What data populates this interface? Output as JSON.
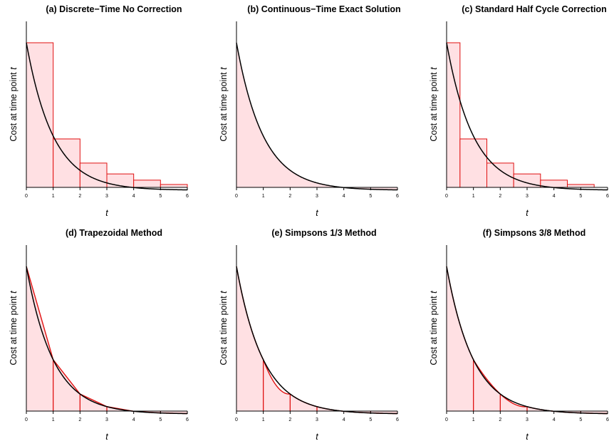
{
  "colors": {
    "curve": "#000000",
    "approx_line": "#e01010",
    "approx_fill": "#ffe0e3",
    "background": "#ffffff"
  },
  "chart_data": [
    {
      "id": "a",
      "type": "area",
      "method": "discrete",
      "title": "(a) Discrete−Time No Correction",
      "xlabel": "t",
      "ylabel_text": "Cost at time point ",
      "ylabel_var": "t",
      "xlim": [
        0,
        6
      ],
      "ylim": [
        0,
        1
      ],
      "x_ticks": [
        "0",
        "1",
        "2",
        "3",
        "4",
        "5",
        "6"
      ],
      "curve": {
        "y0": 1,
        "decay_rate": 1.0,
        "asymptote": -0.02
      },
      "steps": [
        {
          "x0": 0,
          "x1": 1,
          "y": 1.0
        },
        {
          "x0": 1,
          "x1": 2,
          "y": 0.335
        },
        {
          "x0": 2,
          "x1": 3,
          "y": 0.168
        },
        {
          "x0": 3,
          "x1": 4,
          "y": 0.093
        },
        {
          "x0": 4,
          "x1": 5,
          "y": 0.05
        },
        {
          "x0": 5,
          "x1": 6,
          "y": 0.02
        }
      ]
    },
    {
      "id": "b",
      "type": "area",
      "method": "exact",
      "title": "(b) Continuous−Time Exact Solution",
      "xlabel": "t",
      "ylabel_text": "Cost at time point ",
      "ylabel_var": "t",
      "xlim": [
        0,
        6
      ],
      "ylim": [
        0,
        1
      ],
      "x_ticks": [
        "0",
        "1",
        "2",
        "3",
        "4",
        "5",
        "6"
      ],
      "curve": {
        "y0": 1,
        "decay_rate": 1.0,
        "asymptote": -0.02
      }
    },
    {
      "id": "c",
      "type": "area",
      "method": "half_cycle",
      "title": "(c) Standard Half Cycle Correction",
      "xlabel": "t",
      "ylabel_text": "Cost at time point ",
      "ylabel_var": "t",
      "xlim": [
        0,
        6
      ],
      "ylim": [
        0,
        1
      ],
      "x_ticks": [
        "0",
        "1",
        "2",
        "3",
        "4",
        "5",
        "6"
      ],
      "curve": {
        "y0": 1,
        "decay_rate": 1.0,
        "asymptote": -0.02
      },
      "steps": [
        {
          "x0": 0,
          "x1": 0.5,
          "y": 1.0
        },
        {
          "x0": 0.5,
          "x1": 1.5,
          "y": 0.335
        },
        {
          "x0": 1.5,
          "x1": 2.5,
          "y": 0.168
        },
        {
          "x0": 2.5,
          "x1": 3.5,
          "y": 0.093
        },
        {
          "x0": 3.5,
          "x1": 4.5,
          "y": 0.05
        },
        {
          "x0": 4.5,
          "x1": 5.5,
          "y": 0.02
        }
      ]
    },
    {
      "id": "d",
      "type": "area",
      "method": "trapezoidal",
      "title": "(d) Trapezoidal Method",
      "xlabel": "t",
      "ylabel_text": "Cost at time point ",
      "ylabel_var": "t",
      "xlim": [
        0,
        6
      ],
      "ylim": [
        0,
        1
      ],
      "x_ticks": [
        "0",
        "1",
        "2",
        "3",
        "4",
        "5",
        "6"
      ],
      "curve": {
        "y0": 1,
        "decay_rate": 1.0,
        "asymptote": -0.02
      },
      "nodes": [
        0,
        1,
        2,
        3,
        4,
        5,
        6
      ]
    },
    {
      "id": "e",
      "type": "area",
      "method": "simpson13",
      "title": "(e) Simpsons 1/3 Method",
      "xlabel": "t",
      "ylabel_text": "Cost at time point ",
      "ylabel_var": "t",
      "xlim": [
        0,
        6
      ],
      "ylim": [
        0,
        1
      ],
      "x_ticks": [
        "0",
        "1",
        "2",
        "3",
        "4",
        "5",
        "6"
      ],
      "curve": {
        "y0": 1,
        "decay_rate": 1.0,
        "asymptote": -0.02
      },
      "nodes": [
        0,
        1,
        2,
        3,
        4,
        5,
        6
      ],
      "segments": [
        [
          0,
          1
        ],
        [
          1,
          2
        ],
        [
          2,
          6
        ]
      ]
    },
    {
      "id": "f",
      "type": "area",
      "method": "simpson38",
      "title": "(f) Simpsons 3/8 Method",
      "xlabel": "t",
      "ylabel_text": "Cost at time point ",
      "ylabel_var": "t",
      "xlim": [
        0,
        6
      ],
      "ylim": [
        0,
        1
      ],
      "x_ticks": [
        "0",
        "1",
        "2",
        "3",
        "4",
        "5",
        "6"
      ],
      "curve": {
        "y0": 1,
        "decay_rate": 1.0,
        "asymptote": -0.02
      },
      "nodes": [
        0,
        1,
        2,
        3,
        4,
        5,
        6
      ],
      "segments": [
        [
          0,
          1
        ],
        [
          1,
          3
        ],
        [
          3,
          6
        ]
      ]
    }
  ]
}
